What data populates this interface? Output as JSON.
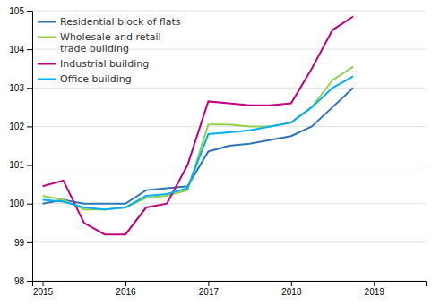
{
  "chart_data": {
    "type": "line",
    "x": [
      2015.0,
      2015.25,
      2015.5,
      2015.75,
      2016.0,
      2016.25,
      2016.5,
      2016.75,
      2017.0,
      2017.25,
      2017.5,
      2017.75,
      2018.0,
      2018.25,
      2018.5,
      2018.75
    ],
    "series": [
      {
        "name": "Residential block of flats",
        "color": "#2e75b6",
        "values": [
          100.0,
          100.1,
          100.0,
          100.0,
          100.0,
          100.35,
          100.4,
          100.45,
          101.35,
          101.5,
          101.55,
          101.65,
          101.75,
          102.0,
          102.5,
          103.0
        ]
      },
      {
        "name": "Wholesale and retail\ntrade building",
        "color": "#92d050",
        "values": [
          100.2,
          100.1,
          99.85,
          99.85,
          99.9,
          100.15,
          100.2,
          100.35,
          102.05,
          102.05,
          102.0,
          102.0,
          102.1,
          102.5,
          103.2,
          103.55
        ]
      },
      {
        "name": "Industrial building",
        "color": "#c00080",
        "values": [
          100.45,
          100.6,
          99.5,
          99.2,
          99.2,
          99.9,
          100.0,
          101.0,
          102.65,
          102.6,
          102.55,
          102.55,
          102.6,
          103.5,
          104.5,
          104.85
        ]
      },
      {
        "name": "Office building",
        "color": "#00b0f0",
        "values": [
          100.1,
          100.05,
          99.9,
          99.85,
          99.9,
          100.2,
          100.25,
          100.4,
          101.8,
          101.85,
          101.9,
          102.0,
          102.1,
          102.5,
          103.0,
          103.3
        ]
      }
    ],
    "xlim": [
      2014.875,
      2019.625
    ],
    "xticks": [
      2015,
      2016,
      2017,
      2018,
      2019
    ],
    "ylim": [
      98,
      105
    ],
    "yticks": [
      98,
      99,
      100,
      101,
      102,
      103,
      104,
      105
    ],
    "grid": true,
    "legend": "upper left"
  }
}
